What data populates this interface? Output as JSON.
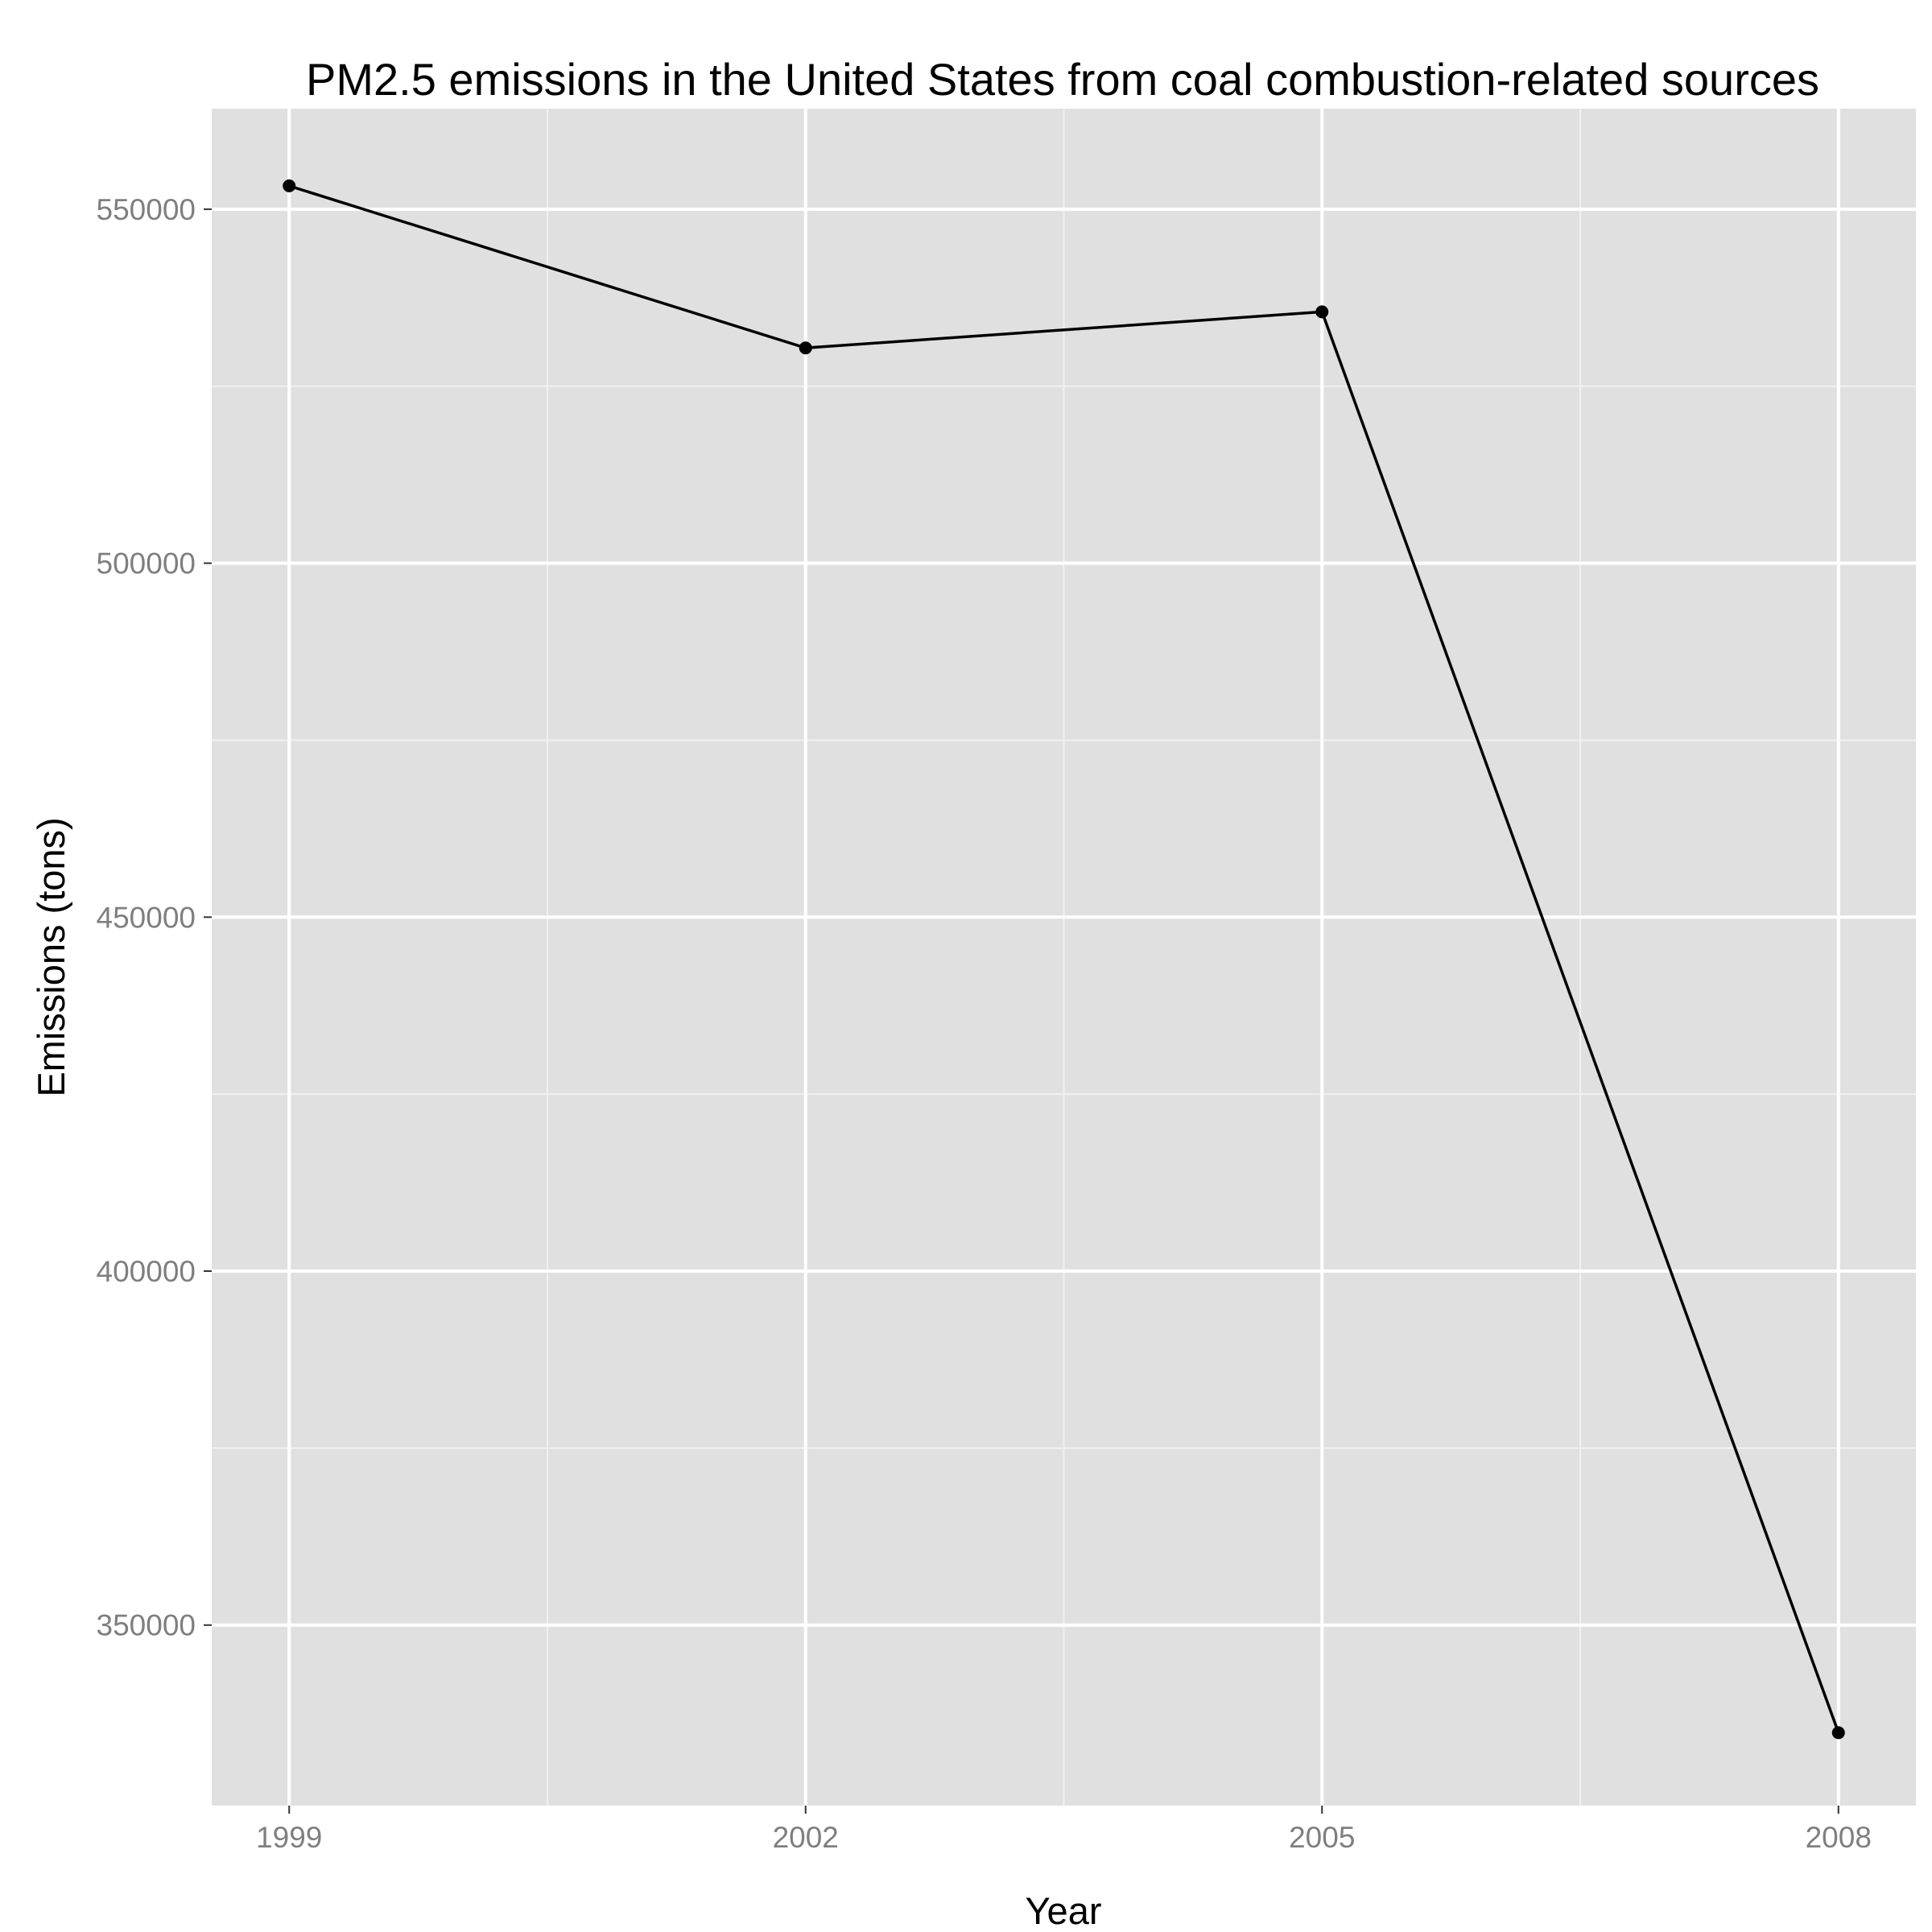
{
  "chart_data": {
    "type": "line",
    "title": "PM2.5 emissions in the United States from coal combustion-related sources",
    "xlabel": "Year",
    "ylabel": "Emissions (tons)",
    "x": [
      1999,
      2002,
      2005,
      2008
    ],
    "x_ticks": [
      "1999",
      "2002",
      "2005",
      "2008"
    ],
    "y_ticks": [
      350000,
      400000,
      450000,
      500000,
      550000
    ],
    "y_tick_labels": [
      "350000",
      "400000",
      "450000",
      "500000",
      "550000"
    ],
    "xlim": [
      1998.55,
      2008.45
    ],
    "ylim": [
      324500,
      564200
    ],
    "series": [
      {
        "values": [
          553300,
          530400,
          535500,
          334800
        ]
      }
    ],
    "markers": true,
    "grid": true,
    "legend": "none",
    "colors": {
      "panel_background": "#e0e0e0",
      "grid_major": "#ffffff",
      "grid_minor": "#f0f0f0",
      "line": "#000000",
      "tick_label": "#7f7f7f"
    }
  }
}
